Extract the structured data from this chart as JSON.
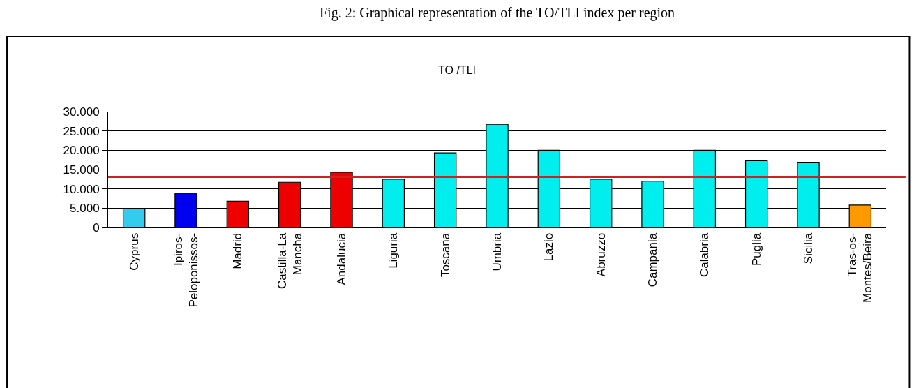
{
  "chart_data": {
    "type": "bar",
    "title": "TO /TLI",
    "annotations": [
      "Fig. 2: Graphical representation of the TO/TLI index per region"
    ],
    "categories": [
      "Cyprus",
      "Ipiros-\nPeloponissos-",
      "Madrid",
      "Castilla-La\nMancha",
      "Andalucia",
      "Liguria",
      "Toscana",
      "Umbria",
      "Lazio",
      "Abruzzo",
      "Campania",
      "Calabria",
      "Puglia",
      "Sicilia",
      "Tras-os-\nMontes/Beira"
    ],
    "values": [
      4900,
      8900,
      6800,
      11700,
      14300,
      12500,
      19300,
      26700,
      20000,
      12500,
      12000,
      20000,
      17400,
      16900,
      5800
    ],
    "colors": [
      "#33ccee",
      "#0000ee",
      "#ee0000",
      "#ee0000",
      "#ee0000",
      "#00eeee",
      "#00eeee",
      "#00eeee",
      "#00eeee",
      "#00eeee",
      "#00eeee",
      "#00eeee",
      "#00eeee",
      "#00eeee",
      "#ff9900"
    ],
    "ylim": [
      0,
      30000
    ],
    "yticks": [
      {
        "value": 0,
        "label": "0"
      },
      {
        "value": 5000,
        "label": "5.000"
      },
      {
        "value": 10000,
        "label": "10.000"
      },
      {
        "value": 15000,
        "label": "15.000"
      },
      {
        "value": 20000,
        "label": "20.000"
      },
      {
        "value": 25000,
        "label": "25.000"
      },
      {
        "value": 30000,
        "label": "30.000"
      }
    ],
    "grid": "y",
    "ref_lines": [
      {
        "axis": "y",
        "value": 13100,
        "color": "#cc2222"
      }
    ]
  }
}
